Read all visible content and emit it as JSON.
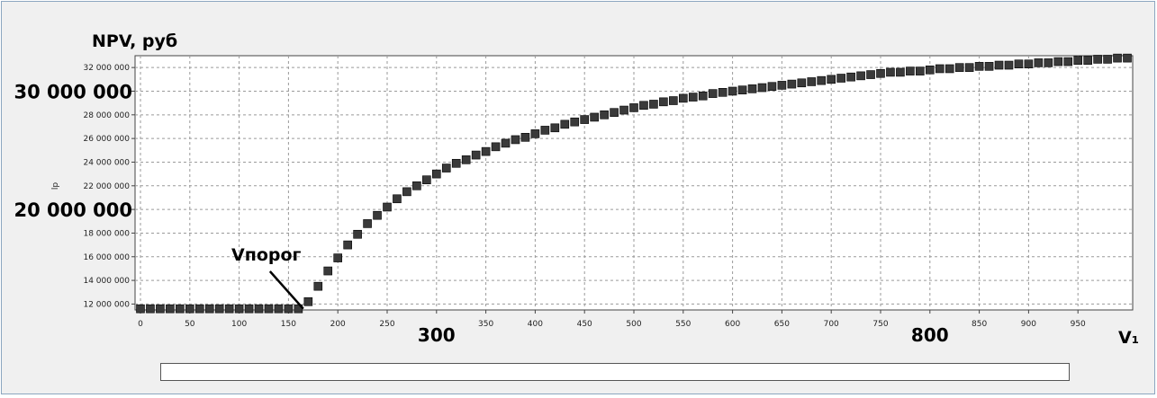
{
  "chart_data": {
    "type": "scatter",
    "ylabel": "NPV, руб",
    "ylabel_small": "lp",
    "xlabel": "V₁",
    "marker_label": "Vпорог",
    "threshold_x": 165,
    "xlim": [
      0,
      1000
    ],
    "ylim": [
      11500000,
      33000000
    ],
    "x_ticks": [
      0,
      50,
      100,
      150,
      200,
      250,
      300,
      350,
      400,
      450,
      500,
      550,
      600,
      650,
      700,
      750,
      800,
      850,
      900,
      950
    ],
    "x_tick_labels": [
      "0",
      "50",
      "100",
      "150",
      "200",
      "250",
      "",
      "350",
      "400",
      "450",
      "500",
      "550",
      "600",
      "650",
      "700",
      "750",
      "",
      "850",
      "900",
      "950"
    ],
    "y_ticks": [
      12000000,
      14000000,
      16000000,
      18000000,
      20000000,
      22000000,
      24000000,
      26000000,
      28000000,
      30000000,
      32000000
    ],
    "y_tick_labels": [
      "12 000 000",
      "14 000 000",
      "16 000 000",
      "18 000 000",
      "",
      "22 000 000",
      "24 000 000",
      "26 000 000",
      "28 000 000",
      "",
      "32 000 000"
    ],
    "big_x_labels": [
      {
        "value": 300,
        "text": "300"
      },
      {
        "value": 800,
        "text": "800"
      }
    ],
    "big_y_labels": [
      {
        "value": 30000000,
        "text": "30 000 000"
      },
      {
        "value": 20000000,
        "text": "20 000 000"
      }
    ],
    "grid": true,
    "marker_color": "#3a3a3a",
    "x": [
      0,
      10,
      20,
      30,
      40,
      50,
      60,
      70,
      80,
      90,
      100,
      110,
      120,
      130,
      140,
      150,
      160,
      170,
      180,
      190,
      200,
      210,
      220,
      230,
      240,
      250,
      260,
      270,
      280,
      290,
      300,
      310,
      320,
      330,
      340,
      350,
      360,
      370,
      380,
      390,
      400,
      410,
      420,
      430,
      440,
      450,
      460,
      470,
      480,
      490,
      500,
      510,
      520,
      530,
      540,
      550,
      560,
      570,
      580,
      590,
      600,
      610,
      620,
      630,
      640,
      650,
      660,
      670,
      680,
      690,
      700,
      710,
      720,
      730,
      740,
      750,
      760,
      770,
      780,
      790,
      800,
      810,
      820,
      830,
      840,
      850,
      860,
      870,
      880,
      890,
      900,
      910,
      920,
      930,
      940,
      950,
      960,
      970,
      980,
      990,
      1000
    ],
    "y": [
      11600000,
      11600000,
      11600000,
      11600000,
      11600000,
      11600000,
      11600000,
      11600000,
      11600000,
      11600000,
      11600000,
      11600000,
      11600000,
      11600000,
      11600000,
      11600000,
      11600000,
      12200000,
      13500000,
      14800000,
      15900000,
      17000000,
      17900000,
      18800000,
      19500000,
      20200000,
      20900000,
      21500000,
      22000000,
      22500000,
      23000000,
      23500000,
      23900000,
      24200000,
      24600000,
      24900000,
      25300000,
      25600000,
      25900000,
      26100000,
      26400000,
      26700000,
      26900000,
      27200000,
      27400000,
      27600000,
      27800000,
      28000000,
      28200000,
      28400000,
      28600000,
      28800000,
      28900000,
      29100000,
      29200000,
      29400000,
      29500000,
      29600000,
      29800000,
      29900000,
      30000000,
      30100000,
      30200000,
      30300000,
      30400000,
      30500000,
      30600000,
      30700000,
      30800000,
      30900000,
      31000000,
      31100000,
      31200000,
      31300000,
      31400000,
      31500000,
      31600000,
      31600000,
      31700000,
      31700000,
      31800000,
      31900000,
      31900000,
      32000000,
      32000000,
      32100000,
      32100000,
      32200000,
      32200000,
      32300000,
      32300000,
      32400000,
      32400000,
      32500000,
      32500000,
      32600000,
      32600000,
      32700000,
      32700000,
      32800000,
      32800000
    ]
  }
}
